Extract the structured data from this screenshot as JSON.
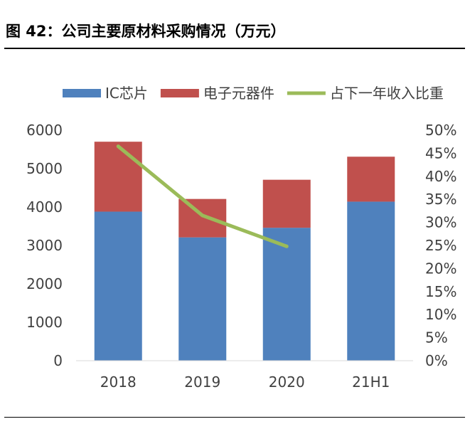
{
  "figure": {
    "title": "图 42：公司主要原材料采购情况（万元）"
  },
  "chart_data": {
    "type": "bar",
    "stacked": true,
    "categories": [
      "2018",
      "2019",
      "2020",
      "21H1"
    ],
    "series": [
      {
        "name": "IC芯片",
        "type": "bar",
        "axis": "left",
        "color": "#4F81BD",
        "values": [
          3880,
          3210,
          3460,
          4140
        ]
      },
      {
        "name": "电子元器件",
        "type": "bar",
        "axis": "left",
        "color": "#C0504D",
        "values": [
          1820,
          1000,
          1250,
          1170
        ]
      },
      {
        "name": "占下一年收入比重",
        "type": "line",
        "axis": "right",
        "color": "#9BBB59",
        "values": [
          0.465,
          0.315,
          0.248,
          null
        ]
      }
    ],
    "y_left": {
      "min": 0,
      "max": 6000,
      "ticks": [
        0,
        1000,
        2000,
        3000,
        4000,
        5000,
        6000
      ]
    },
    "y_right": {
      "min": 0,
      "max": 0.5,
      "ticks": [
        "0%",
        "5%",
        "10%",
        "15%",
        "20%",
        "25%",
        "30%",
        "35%",
        "40%",
        "45%",
        "50%"
      ]
    },
    "legend_position": "top",
    "grid": false
  }
}
